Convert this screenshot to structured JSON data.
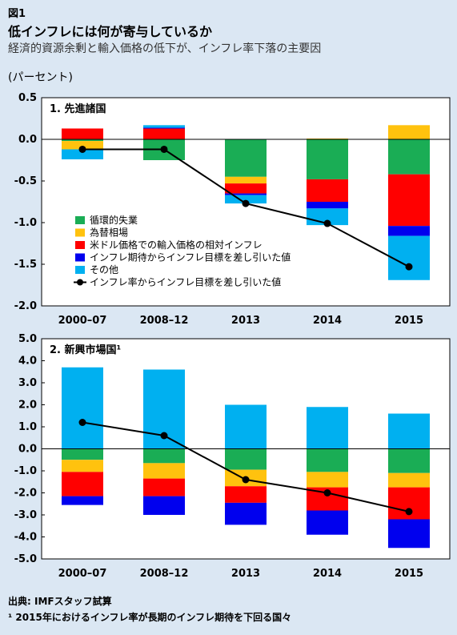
{
  "header": {
    "fig_label": "図1",
    "title": "低インフレには何が寄与しているか",
    "subtitle": "経済的資源余剰と輸入価格の低下が、インフレ率下落の主要因",
    "unit": "(パーセント)"
  },
  "footer": {
    "source": "出典: IMFスタッフ試算",
    "note": "¹ 2015年におけるインフレ率が長期のインフレ期待を下回る国々"
  },
  "colors": {
    "green": "#1aad55",
    "yellow": "#ffc20e",
    "red": "#ff0000",
    "blue": "#0000ee",
    "cyan": "#00b0f0",
    "line": "#000000"
  },
  "legend": [
    {
      "key": "green",
      "label": "循環的失業"
    },
    {
      "key": "yellow",
      "label": "為替相場"
    },
    {
      "key": "red",
      "label": "米ドル価格での輸入価格の相対インフレ"
    },
    {
      "key": "blue",
      "label": "インフレ期待からインフレ目標を差し引いた値"
    },
    {
      "key": "cyan",
      "label": "その他"
    },
    {
      "key": "line",
      "label": "インフレ率からインフレ目標を差し引いた値"
    }
  ],
  "chart_data": [
    {
      "type": "bar",
      "stacked": true,
      "title": "1. 先進諸国",
      "categories": [
        "2000–07",
        "2008–12",
        "2013",
        "2014",
        "2015"
      ],
      "ylim": [
        -2.0,
        0.5
      ],
      "yticks": [
        0.5,
        0.0,
        -0.5,
        -1.0,
        -1.5,
        -2.0
      ],
      "ytick_labels": [
        "0.5",
        "0.0",
        "-0.5",
        "-1.0",
        "-1.5",
        "-2.0"
      ],
      "series": [
        {
          "name": "循環的失業",
          "color_key": "green",
          "values": [
            -0.02,
            -0.25,
            -0.45,
            -0.48,
            -0.42
          ]
        },
        {
          "name": "為替相場",
          "color_key": "yellow",
          "values": [
            -0.1,
            0.0,
            -0.08,
            0.01,
            0.17
          ]
        },
        {
          "name": "米ドル価格での輸入価格の相対インフレ",
          "color_key": "red",
          "values": [
            0.13,
            0.13,
            -0.12,
            -0.27,
            -0.62
          ]
        },
        {
          "name": "インフレ期待からインフレ目標を差し引いた値",
          "color_key": "blue",
          "values": [
            0.0,
            0.01,
            -0.02,
            -0.08,
            -0.12
          ]
        },
        {
          "name": "その他",
          "color_key": "cyan",
          "values": [
            -0.12,
            0.03,
            -0.1,
            -0.2,
            -0.53
          ]
        }
      ],
      "line": {
        "name": "インフレ率からインフレ目標を差し引いた値",
        "values": [
          -0.12,
          -0.12,
          -0.77,
          -1.01,
          -1.53
        ]
      },
      "legend_position": "inside-bottom-left"
    },
    {
      "type": "bar",
      "stacked": true,
      "title": "2. 新興市場国¹",
      "categories": [
        "2000–07",
        "2008–12",
        "2013",
        "2014",
        "2015"
      ],
      "ylim": [
        -5.0,
        5.0
      ],
      "yticks": [
        5,
        4,
        3,
        2,
        1,
        0,
        -1,
        -2,
        -3,
        -4,
        -5
      ],
      "ytick_labels": [
        "5.0",
        "4.0",
        "3.0",
        "2.0",
        "1.0",
        "0.0",
        "-1.0",
        "-2.0",
        "-3.0",
        "-4.0",
        "-5.0"
      ],
      "series": [
        {
          "name": "循環的失業",
          "color_key": "green",
          "values": [
            -0.5,
            -0.65,
            -0.95,
            -1.05,
            -1.1
          ]
        },
        {
          "name": "為替相場",
          "color_key": "yellow",
          "values": [
            -0.55,
            -0.7,
            -0.75,
            -0.7,
            -0.65
          ]
        },
        {
          "name": "米ドル価格での輸入価格の相対インフレ",
          "color_key": "red",
          "values": [
            -1.1,
            -0.8,
            -0.75,
            -1.05,
            -1.45
          ]
        },
        {
          "name": "インフレ期待からインフレ目標を差し引いた値",
          "color_key": "blue",
          "values": [
            -0.4,
            -0.85,
            -1.0,
            -1.1,
            -1.3
          ]
        },
        {
          "name": "その他",
          "color_key": "cyan",
          "values": [
            3.7,
            3.6,
            2.0,
            1.9,
            1.6
          ]
        }
      ],
      "line": {
        "name": "インフレ率からインフレ目標を差し引いた値",
        "values": [
          1.2,
          0.6,
          -1.4,
          -2.0,
          -2.85
        ]
      }
    }
  ]
}
